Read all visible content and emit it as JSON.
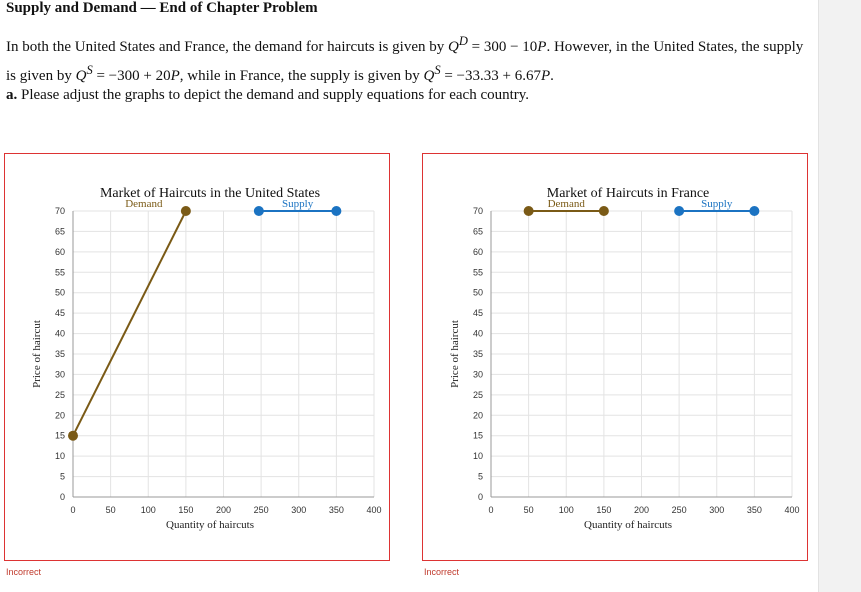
{
  "problem": {
    "title": "Supply and Demand — End of Chapter Problem",
    "intro": "In both the United States and France, the demand for haircuts is given by ",
    "demand_eq": "Q",
    "demand_sup": "D",
    "demand_rhs": " = 300 − 10",
    "p1": "P",
    "mid": ". However, in the United States, the supply is given by ",
    "us_q": "Q",
    "us_sup": "S",
    "us_rhs": " = −300 + 20",
    "p2": "P",
    "mid2": ", while in France, the supply is given by ",
    "fr_q": "Q",
    "fr_sup": "S",
    "fr_rhs": " = −33.33 + 6.67",
    "p3": "P",
    "end": ".",
    "part_label": "a.",
    "part_text": " Please adjust the graphs to depict the demand and supply equations for each country."
  },
  "status": [
    "Incorrect",
    "Incorrect"
  ],
  "colors": {
    "demand": "#7a5a16",
    "supply": "#1b73c2",
    "border": "#dd3333",
    "status": "#c0392b"
  },
  "chart_data": [
    {
      "type": "line",
      "title": "Market of Haircuts in the United States",
      "xlabel": "Quantity of haircuts",
      "ylabel": "Price of haircut",
      "xlim": [
        0,
        400
      ],
      "ylim": [
        0,
        70
      ],
      "xticks": [
        0,
        50,
        100,
        150,
        200,
        250,
        300,
        350,
        400
      ],
      "yticks": [
        0,
        5,
        10,
        15,
        20,
        25,
        30,
        35,
        40,
        45,
        50,
        55,
        60,
        65,
        70
      ],
      "grid": true,
      "series": [
        {
          "name": "Demand",
          "color": "#7a5a16",
          "points": [
            [
              0,
              15
            ],
            [
              150,
              70
            ]
          ]
        },
        {
          "name": "Supply",
          "color": "#1b73c2",
          "points": [
            [
              247,
              70
            ],
            [
              350,
              70
            ]
          ]
        }
      ]
    },
    {
      "type": "line",
      "title": "Market of Haircuts in France",
      "xlabel": "Quantity of haircuts",
      "ylabel": "Price of haircut",
      "xlim": [
        0,
        400
      ],
      "ylim": [
        0,
        70
      ],
      "xticks": [
        0,
        50,
        100,
        150,
        200,
        250,
        300,
        350,
        400
      ],
      "yticks": [
        0,
        5,
        10,
        15,
        20,
        25,
        30,
        35,
        40,
        45,
        50,
        55,
        60,
        65,
        70
      ],
      "grid": true,
      "series": [
        {
          "name": "Demand",
          "color": "#7a5a16",
          "points": [
            [
              50,
              70
            ],
            [
              150,
              70
            ]
          ]
        },
        {
          "name": "Supply",
          "color": "#1b73c2",
          "points": [
            [
              250,
              70
            ],
            [
              350,
              70
            ]
          ]
        }
      ]
    }
  ]
}
